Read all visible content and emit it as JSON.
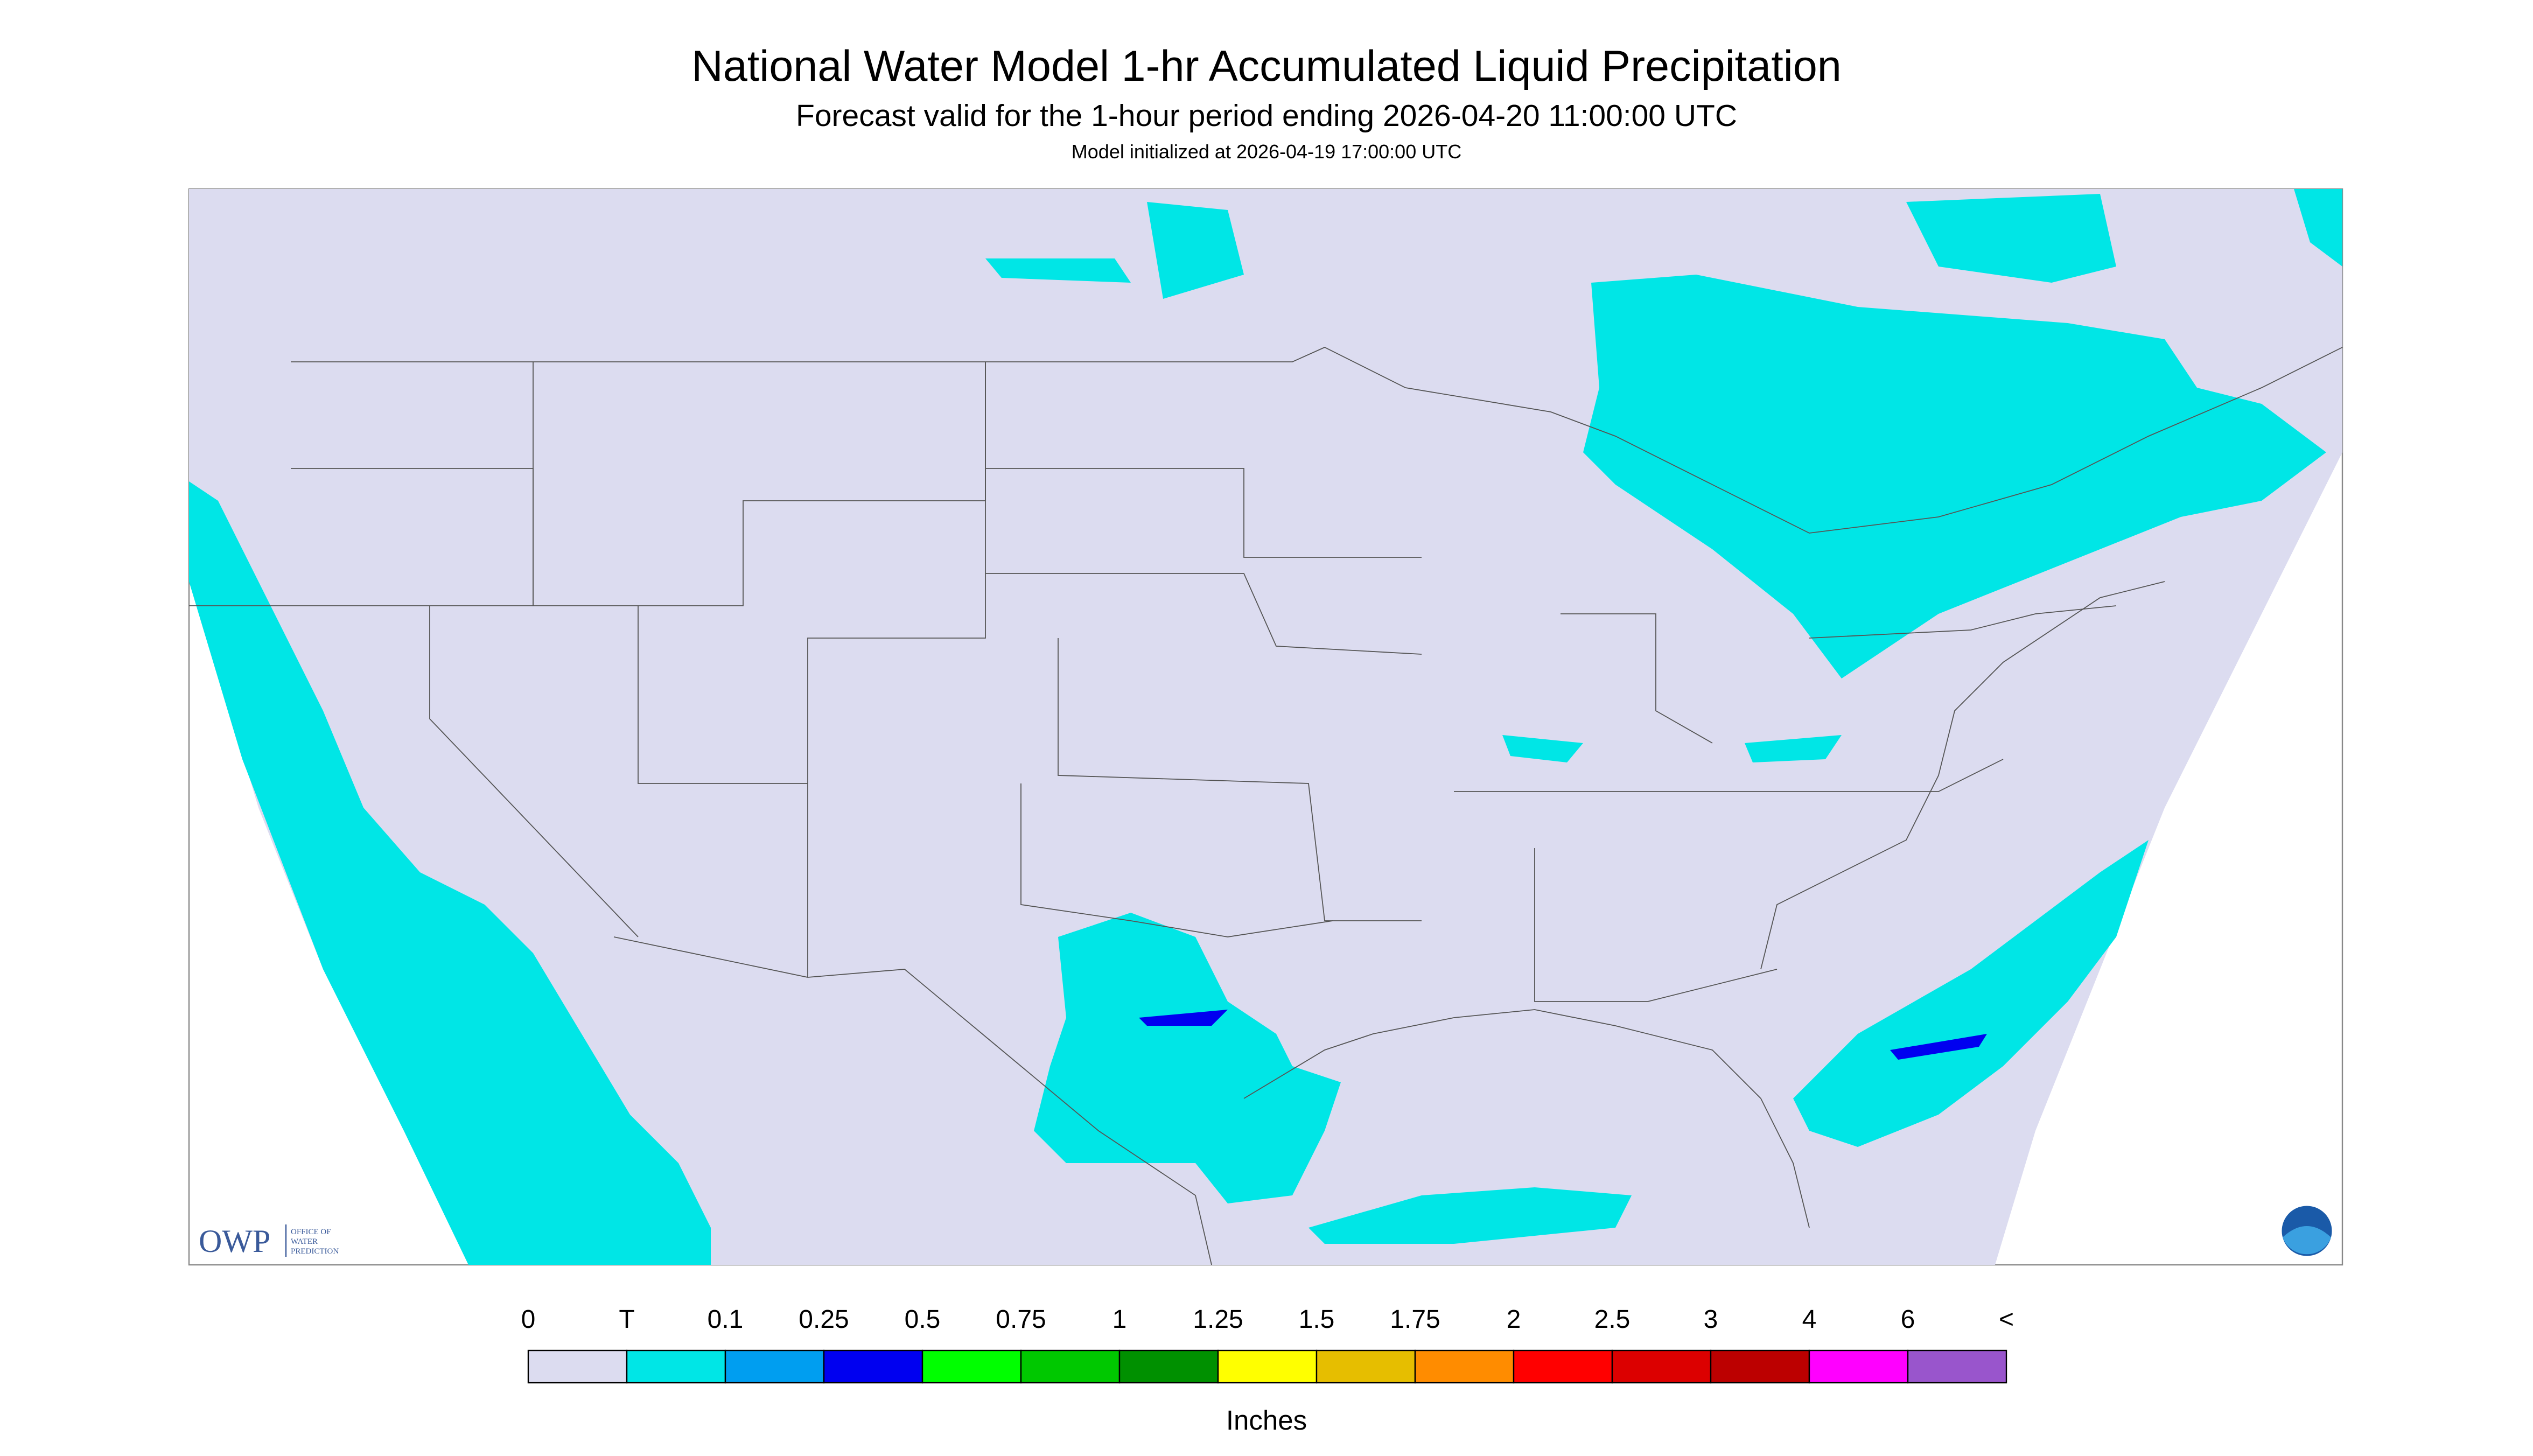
{
  "header": {
    "title": "National Water Model 1-hr Accumulated Liquid Precipitation",
    "subtitle": "Forecast valid for the 1-hour period ending 2026-04-20 11:00:00 UTC",
    "note": "Model initialized at 2026-04-19 17:00:00 UTC"
  },
  "legend": {
    "labels": [
      "0",
      "T",
      "0.1",
      "0.25",
      "0.5",
      "0.75",
      "1",
      "1.25",
      "1.5",
      "1.75",
      "2",
      "2.5",
      "3",
      "4",
      "6",
      "<"
    ],
    "colors": [
      "#dcdcf0",
      "#00e6e6",
      "#009ef0",
      "#0000f0",
      "#00ff00",
      "#00c800",
      "#009000",
      "#ffff00",
      "#e6be00",
      "#ff8c00",
      "#ff0000",
      "#dc0000",
      "#bc0000",
      "#ff00ff",
      "#9955cc"
    ],
    "unit": "Inches"
  },
  "logo": {
    "name": "OWP",
    "text": [
      "OFFICE OF",
      "WATER",
      "PREDICTION"
    ]
  }
}
